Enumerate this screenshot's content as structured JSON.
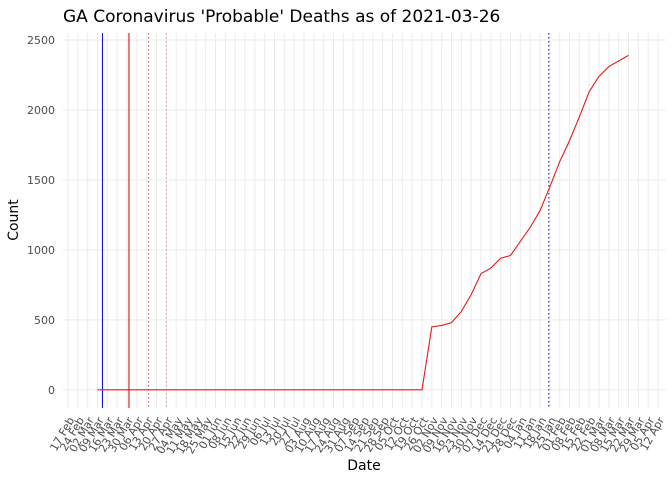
{
  "chart_data": {
    "type": "line",
    "title": "GA Coronavirus 'Probable' Deaths as of 2021-03-26",
    "x_label": "Date",
    "y_label": "Count",
    "categories": [
      "17 Feb",
      "24 Feb",
      "02 Mar",
      "09 Mar",
      "16 Mar",
      "23 Mar",
      "30 Mar",
      "06 Apr",
      "13 Apr",
      "20 Apr",
      "27 Apr",
      "04 May",
      "11 May",
      "18 May",
      "25 May",
      "01 Jun",
      "08 Jun",
      "15 Jun",
      "22 Jun",
      "29 Jun",
      "06 Jul",
      "13 Jul",
      "20 Jul",
      "27 Jul",
      "03 Aug",
      "10 Aug",
      "17 Aug",
      "24 Aug",
      "31 Aug",
      "07 Sep",
      "14 Sep",
      "21 Sep",
      "28 Sep",
      "05 Oct",
      "12 Oct",
      "19 Oct",
      "26 Oct",
      "02 Nov",
      "09 Nov",
      "16 Nov",
      "23 Nov",
      "30 Nov",
      "07 Dec",
      "14 Dec",
      "21 Dec",
      "28 Dec",
      "04 Jan",
      "11 Jan",
      "18 Jan",
      "25 Jan",
      "01 Feb",
      "08 Feb",
      "15 Feb",
      "22 Feb",
      "01 Mar",
      "08 Mar",
      "15 Mar",
      "22 Mar",
      "29 Mar",
      "05 Apr",
      "12 Apr"
    ],
    "series": [
      {
        "color": "#e41a1c",
        "values": [
          null,
          null,
          null,
          0,
          0,
          0,
          0,
          0,
          0,
          0,
          0,
          0,
          0,
          0,
          0,
          0,
          0,
          0,
          0,
          0,
          0,
          0,
          0,
          0,
          0,
          0,
          0,
          0,
          0,
          0,
          0,
          0,
          0,
          0,
          0,
          0,
          0,
          450,
          460,
          480,
          560,
          680,
          830,
          870,
          940,
          960,
          1060,
          1160,
          1280,
          1450,
          1630,
          1780,
          1950,
          2130,
          2240,
          2310,
          2350,
          2390,
          null,
          null,
          null
        ]
      }
    ],
    "reference_lines": [
      {
        "x": 3.5,
        "color": "#0000cc",
        "style": "solid"
      },
      {
        "x": 6.2,
        "color": "#cc0000",
        "style": "solid"
      },
      {
        "x": 8.2,
        "color": "#e04040",
        "style": "dotted"
      },
      {
        "x": 10,
        "color": "#e080c0",
        "style": "dotted"
      },
      {
        "x": 48.9,
        "color": "#0000cc",
        "style": "dotted"
      }
    ],
    "ylim": [
      -130,
      2550
    ],
    "yticks": [
      0,
      500,
      1000,
      1500,
      2000,
      2500
    ],
    "grid": true
  }
}
